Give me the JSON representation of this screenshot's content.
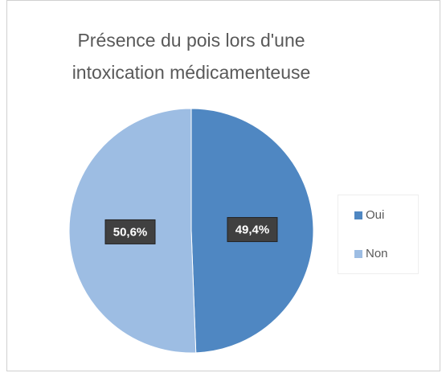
{
  "chart_data": {
    "type": "pie",
    "title": "Présence du pois lors d'une intoxication médicamenteuse",
    "categories": [
      "Oui",
      "Non"
    ],
    "values": [
      49.4,
      50.6
    ],
    "value_labels": [
      "49,4%",
      "50,6%"
    ],
    "colors": [
      "#4f87c2",
      "#9dbde3"
    ],
    "legend": "right"
  }
}
